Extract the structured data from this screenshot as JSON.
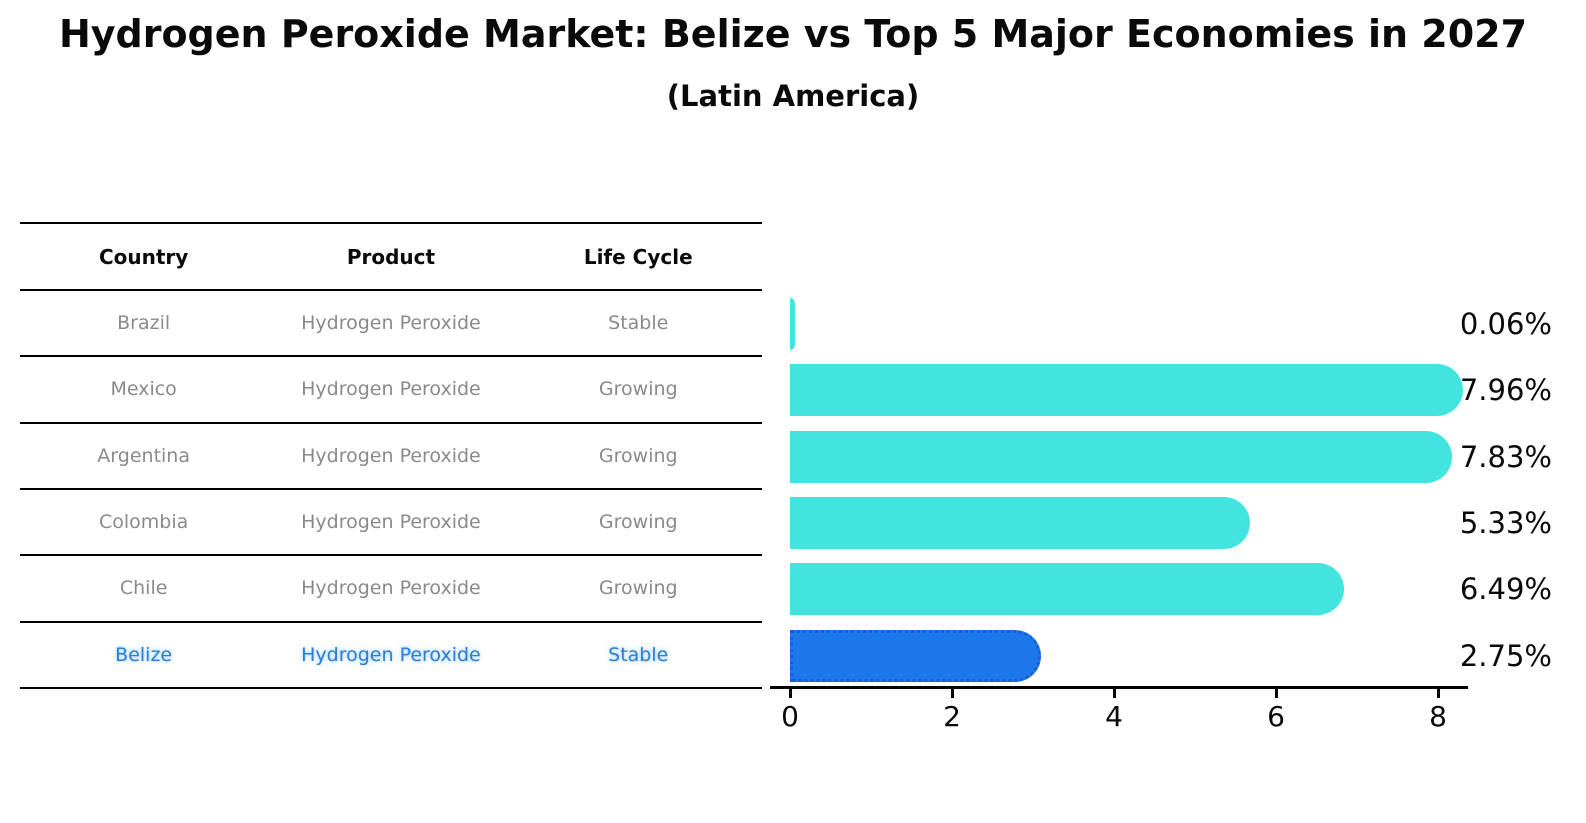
{
  "header": {
    "title": "Hydrogen Peroxide Market: Belize vs Top 5 Major Economies in 2027",
    "subtitle": "(Latin America)"
  },
  "table": {
    "columns": [
      "Country",
      "Product",
      "Life Cycle"
    ],
    "rows": [
      {
        "country": "Brazil",
        "product": "Hydrogen Peroxide",
        "life_cycle": "Stable",
        "highlight": false
      },
      {
        "country": "Mexico",
        "product": "Hydrogen Peroxide",
        "life_cycle": "Growing",
        "highlight": false
      },
      {
        "country": "Argentina",
        "product": "Hydrogen Peroxide",
        "life_cycle": "Growing",
        "highlight": false
      },
      {
        "country": "Colombia",
        "product": "Hydrogen Peroxide",
        "life_cycle": "Growing",
        "highlight": false
      },
      {
        "country": "Chile",
        "product": "Hydrogen Peroxide",
        "life_cycle": "Growing",
        "highlight": false
      },
      {
        "country": "Belize",
        "product": "Hydrogen Peroxide",
        "life_cycle": "Stable",
        "highlight": true
      }
    ]
  },
  "chart_data": {
    "type": "bar",
    "orientation": "horizontal",
    "categories": [
      "Brazil",
      "Mexico",
      "Argentina",
      "Colombia",
      "Chile",
      "Belize"
    ],
    "values": [
      0.06,
      7.96,
      7.83,
      5.33,
      6.49,
      2.75
    ],
    "value_labels": [
      "0.06%",
      "7.96%",
      "7.83%",
      "5.33%",
      "6.49%",
      "2.75%"
    ],
    "x_ticks": [
      0,
      2,
      4,
      6,
      8
    ],
    "xlim": [
      0,
      8.3
    ],
    "highlight_index": 5,
    "legend": "none",
    "grid": "off"
  },
  "colors": {
    "bar_default": "#43E4DF",
    "bar_highlight": "#1E78EB",
    "bar_highlight_border": "#1560D0",
    "highlight_text": "#2e7fd0",
    "table_text": "#8a8a8a",
    "axis": "#000000"
  }
}
